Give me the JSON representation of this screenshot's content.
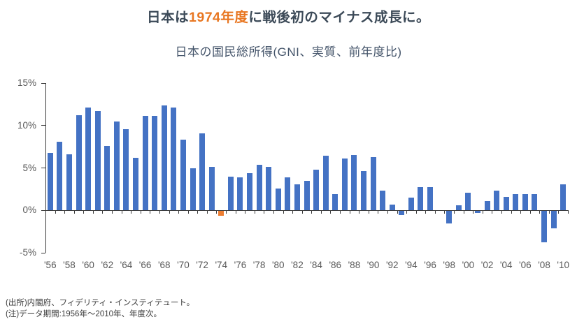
{
  "header": {
    "title": {
      "pre": "日本は",
      "highlight": "1974年度",
      "post": "に戦後初のマイナス成長に。"
    },
    "highlight_color": "#E87722",
    "title_color": "#3C4A58"
  },
  "chart_data": {
    "type": "bar",
    "title": "日本の国民総所得(GNI、実質、前年度比)",
    "xlabel": "",
    "ylabel": "",
    "unit": "%",
    "ylim": [
      -5,
      15
    ],
    "yticks": [
      15,
      10,
      5,
      0,
      -5
    ],
    "ytick_labels": [
      "15%",
      "10%",
      "5%",
      "0%",
      "-5%"
    ],
    "years": [
      1956,
      1957,
      1958,
      1959,
      1960,
      1961,
      1962,
      1963,
      1964,
      1965,
      1966,
      1967,
      1968,
      1969,
      1970,
      1971,
      1972,
      1973,
      1974,
      1975,
      1976,
      1977,
      1978,
      1979,
      1980,
      1981,
      1982,
      1983,
      1984,
      1985,
      1986,
      1987,
      1988,
      1989,
      1990,
      1991,
      1992,
      1993,
      1994,
      1995,
      1996,
      1997,
      1998,
      1999,
      2000,
      2001,
      2002,
      2003,
      2004,
      2005,
      2006,
      2007,
      2008,
      2009,
      2010
    ],
    "values": [
      6.8,
      8.1,
      6.6,
      11.2,
      12.1,
      11.7,
      7.6,
      10.5,
      9.6,
      6.2,
      11.1,
      11.1,
      12.4,
      12.1,
      8.3,
      5.0,
      9.1,
      5.1,
      -0.6,
      4.0,
      3.9,
      4.4,
      5.4,
      5.1,
      2.6,
      3.9,
      3.1,
      3.5,
      4.8,
      6.4,
      1.9,
      6.1,
      6.5,
      4.6,
      6.3,
      2.3,
      0.7,
      -0.5,
      1.5,
      2.7,
      2.7,
      0.0,
      -1.5,
      0.6,
      2.1,
      -0.3,
      1.1,
      2.3,
      1.6,
      1.9,
      1.9,
      1.9,
      -3.7,
      -2.1,
      3.1
    ],
    "xtick_labels": [
      "'56",
      "'58",
      "'60",
      "'62",
      "'64",
      "'66",
      "'68",
      "'70",
      "'72",
      "'74",
      "'76",
      "'78",
      "'80",
      "'82",
      "'84",
      "'86",
      "'88",
      "'90",
      "'92",
      "'94",
      "'96",
      "'98",
      "'00",
      "'02",
      "'04",
      "'06",
      "'08",
      "'10"
    ],
    "bar_color": "#4472C4",
    "highlight_year": 1974,
    "highlight_bar_color": "#ED7D31",
    "axis_color": "#3A3A3A",
    "tick_label_color": "#595959",
    "grid": false,
    "legend": "none",
    "annotation": "1974 bar highlighted in orange (first postwar negative growth)"
  },
  "footnotes": {
    "source": "(出所)内閣府、フィデリティ・インスティテュート。",
    "note": "(注)データ期間:1956年〜2010年、年度次。"
  }
}
